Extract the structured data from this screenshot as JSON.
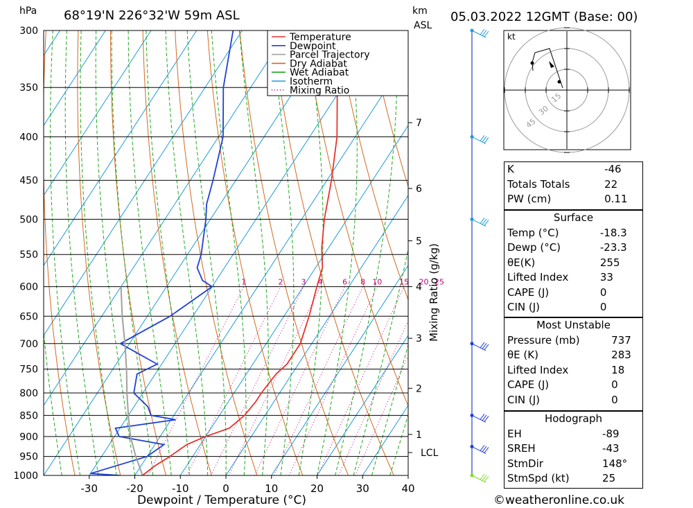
{
  "header": {
    "pressure_unit": "hPa",
    "location": "68°19'N 226°32'W 59m ASL",
    "height_unit_1": "km",
    "height_unit_2": "ASL",
    "datetime": "05.03.2022 12GMT (Base: 00)"
  },
  "chart_data": {
    "type": "line",
    "subtype": "skew-t log-p",
    "xlabel": "Dewpoint / Temperature (°C)",
    "right_axis_label": "Mixing Ratio (g/kg)",
    "x_ticks": [
      -30,
      -20,
      -10,
      0,
      10,
      20,
      30,
      40
    ],
    "pressure_ticks": [
      300,
      350,
      400,
      450,
      500,
      550,
      600,
      650,
      700,
      750,
      800,
      850,
      900,
      950,
      1000
    ],
    "pressure_range": [
      300,
      1000
    ],
    "temperature_range_at_1000": [
      -40,
      40
    ],
    "km_ticks": [
      {
        "label": "7",
        "p": 385
      },
      {
        "label": "6",
        "p": 460
      },
      {
        "label": "5",
        "p": 530
      },
      {
        "label": "4",
        "p": 600
      },
      {
        "label": "3",
        "p": 690
      },
      {
        "label": "2",
        "p": 790
      },
      {
        "label": "1",
        "p": 895
      },
      {
        "label": "LCL",
        "p": 940
      }
    ],
    "mixing_ratio_labels": [
      "1",
      "2",
      "3",
      "4",
      "6",
      "8",
      "10",
      "15",
      "20",
      "25"
    ],
    "mixing_ratio_values": [
      1,
      2,
      3,
      4,
      6,
      8,
      10,
      15,
      20,
      25
    ],
    "legend": [
      {
        "name": "Temperature",
        "color": "#e8322b",
        "style": "solid"
      },
      {
        "name": "Dewpoint",
        "color": "#1f3fd6",
        "style": "solid"
      },
      {
        "name": "Parcel Trajectory",
        "color": "#a0a0a0",
        "style": "solid"
      },
      {
        "name": "Dry Adiabat",
        "color": "#d2691e",
        "style": "solid"
      },
      {
        "name": "Wet Adiabat",
        "color": "#1fa81f",
        "style": "solid"
      },
      {
        "name": "Isotherm",
        "color": "#1e9bd7",
        "style": "solid"
      },
      {
        "name": "Mixing Ratio",
        "color": "#c0007f",
        "style": "dotted"
      }
    ],
    "series": [
      {
        "name": "Temperature",
        "color": "#e8322b",
        "points": [
          [
            1000,
            -18.3
          ],
          [
            975,
            -17
          ],
          [
            950,
            -15
          ],
          [
            920,
            -13
          ],
          [
            900,
            -10
          ],
          [
            880,
            -6
          ],
          [
            860,
            -5
          ],
          [
            850,
            -4.5
          ],
          [
            820,
            -4
          ],
          [
            800,
            -4
          ],
          [
            760,
            -3.5
          ],
          [
            740,
            -2.5
          ],
          [
            700,
            -2.5
          ],
          [
            650,
            -4.5
          ],
          [
            600,
            -7
          ],
          [
            570,
            -8.5
          ],
          [
            540,
            -11.5
          ],
          [
            500,
            -15
          ],
          [
            450,
            -19
          ],
          [
            400,
            -24
          ],
          [
            350,
            -31
          ],
          [
            300,
            -38
          ]
        ]
      },
      {
        "name": "Dewpoint",
        "color": "#1f3fd6",
        "points": [
          [
            1000,
            -23.3
          ],
          [
            995,
            -30
          ],
          [
            950,
            -20
          ],
          [
            920,
            -18
          ],
          [
            900,
            -29
          ],
          [
            880,
            -31
          ],
          [
            860,
            -19
          ],
          [
            850,
            -25
          ],
          [
            830,
            -27
          ],
          [
            800,
            -32
          ],
          [
            760,
            -34
          ],
          [
            740,
            -31
          ],
          [
            700,
            -42
          ],
          [
            650,
            -35
          ],
          [
            600,
            -30
          ],
          [
            590,
            -33
          ],
          [
            570,
            -36
          ],
          [
            550,
            -37
          ],
          [
            500,
            -41
          ],
          [
            480,
            -43
          ],
          [
            450,
            -45
          ],
          [
            400,
            -49
          ],
          [
            350,
            -56
          ],
          [
            300,
            -62
          ]
        ]
      },
      {
        "name": "Parcel Trajectory",
        "color": "#a0a0a0",
        "points": [
          [
            1000,
            -18.3
          ],
          [
            950,
            -22.5
          ],
          [
            900,
            -26.5
          ],
          [
            850,
            -30
          ],
          [
            800,
            -33.5
          ],
          [
            750,
            -37
          ],
          [
            700,
            -41
          ],
          [
            650,
            -45.5
          ],
          [
            600,
            -50
          ]
        ]
      }
    ]
  },
  "hodograph": {
    "unit_label": "kt",
    "ring_labels": [
      "15",
      "30",
      "45"
    ]
  },
  "wind_profile_pressures": [
    300,
    400,
    500,
    700,
    850,
    925,
    1000
  ],
  "indices": {
    "K_label": "K",
    "K": "-46",
    "TT_label": "Totals Totals",
    "TT": "22",
    "PW_label": "PW (cm)",
    "PW": "0.11"
  },
  "surface": {
    "title": "Surface",
    "temp_label": "Temp (°C)",
    "temp": "-18.3",
    "dewp_label": "Dewp (°C)",
    "dewp": "-23.3",
    "theta_label": "θE(K)",
    "theta": "255",
    "li_label": "Lifted Index",
    "li": "33",
    "cape_label": "CAPE (J)",
    "cape": "0",
    "cin_label": "CIN (J)",
    "cin": "0"
  },
  "most_unstable": {
    "title": "Most Unstable",
    "pressure_label": "Pressure (mb)",
    "pressure": "737",
    "theta_label": "θE (K)",
    "theta": "283",
    "li_label": "Lifted Index",
    "li": "18",
    "cape_label": "CAPE (J)",
    "cape": "0",
    "cin_label": "CIN (J)",
    "cin": "0"
  },
  "hodo_stats": {
    "title": "Hodograph",
    "eh_label": "EH",
    "eh": "-89",
    "sreh_label": "SREH",
    "sreh": "-43",
    "stmdir_label": "StmDir",
    "stmdir": "148°",
    "stmspd_label": "StmSpd (kt)",
    "stmspd": "25"
  },
  "footer": {
    "copyright": "©weatheronline.co.uk"
  }
}
